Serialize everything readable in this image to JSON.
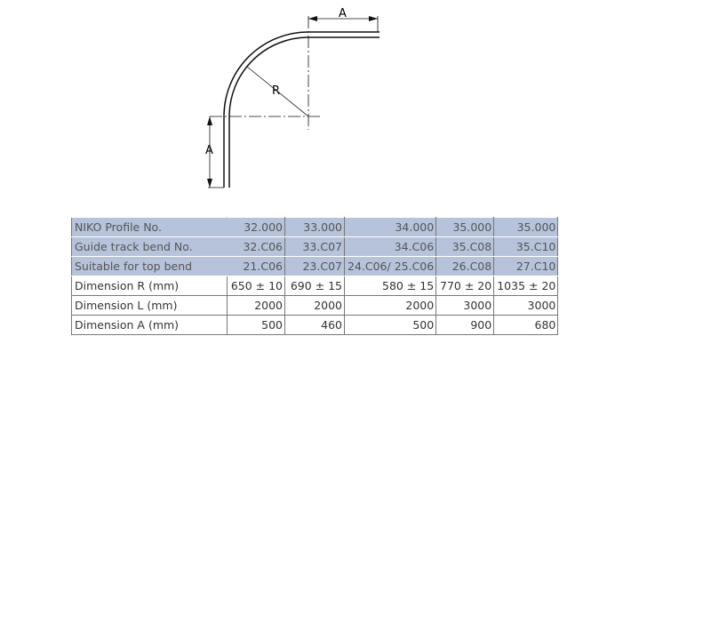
{
  "drawing": {
    "label_a_top": "A",
    "label_a_left": "A",
    "label_r": "R"
  },
  "table": {
    "highlight_color": "#b6c3db",
    "rows": [
      {
        "label": "NIKO Profile No.",
        "values": [
          "32.000",
          "33.000",
          "34.000",
          "35.000",
          "35.000"
        ],
        "highlight": true
      },
      {
        "label": "Guide track bend No.",
        "values": [
          "32.C06",
          "33.C07",
          "34.C06",
          "35.C08",
          "35.C10"
        ],
        "highlight": true
      },
      {
        "label": "Suitable for top bend",
        "values": [
          "21.C06",
          "23.C07",
          "24.C06/ 25.C06",
          "26.C08",
          "27.C10"
        ],
        "highlight": true
      },
      {
        "label": "Dimension R (mm)",
        "values": [
          "650 ± 10",
          "690 ± 15",
          "580 ± 15",
          "770 ± 20",
          "1035 ± 20"
        ],
        "highlight": false
      },
      {
        "label": "Dimension L (mm)",
        "values": [
          "2000",
          "2000",
          "2000",
          "3000",
          "3000"
        ],
        "highlight": false
      },
      {
        "label": "Dimension A (mm)",
        "values": [
          "500",
          "460",
          "500",
          "900",
          "680"
        ],
        "highlight": false
      }
    ]
  }
}
